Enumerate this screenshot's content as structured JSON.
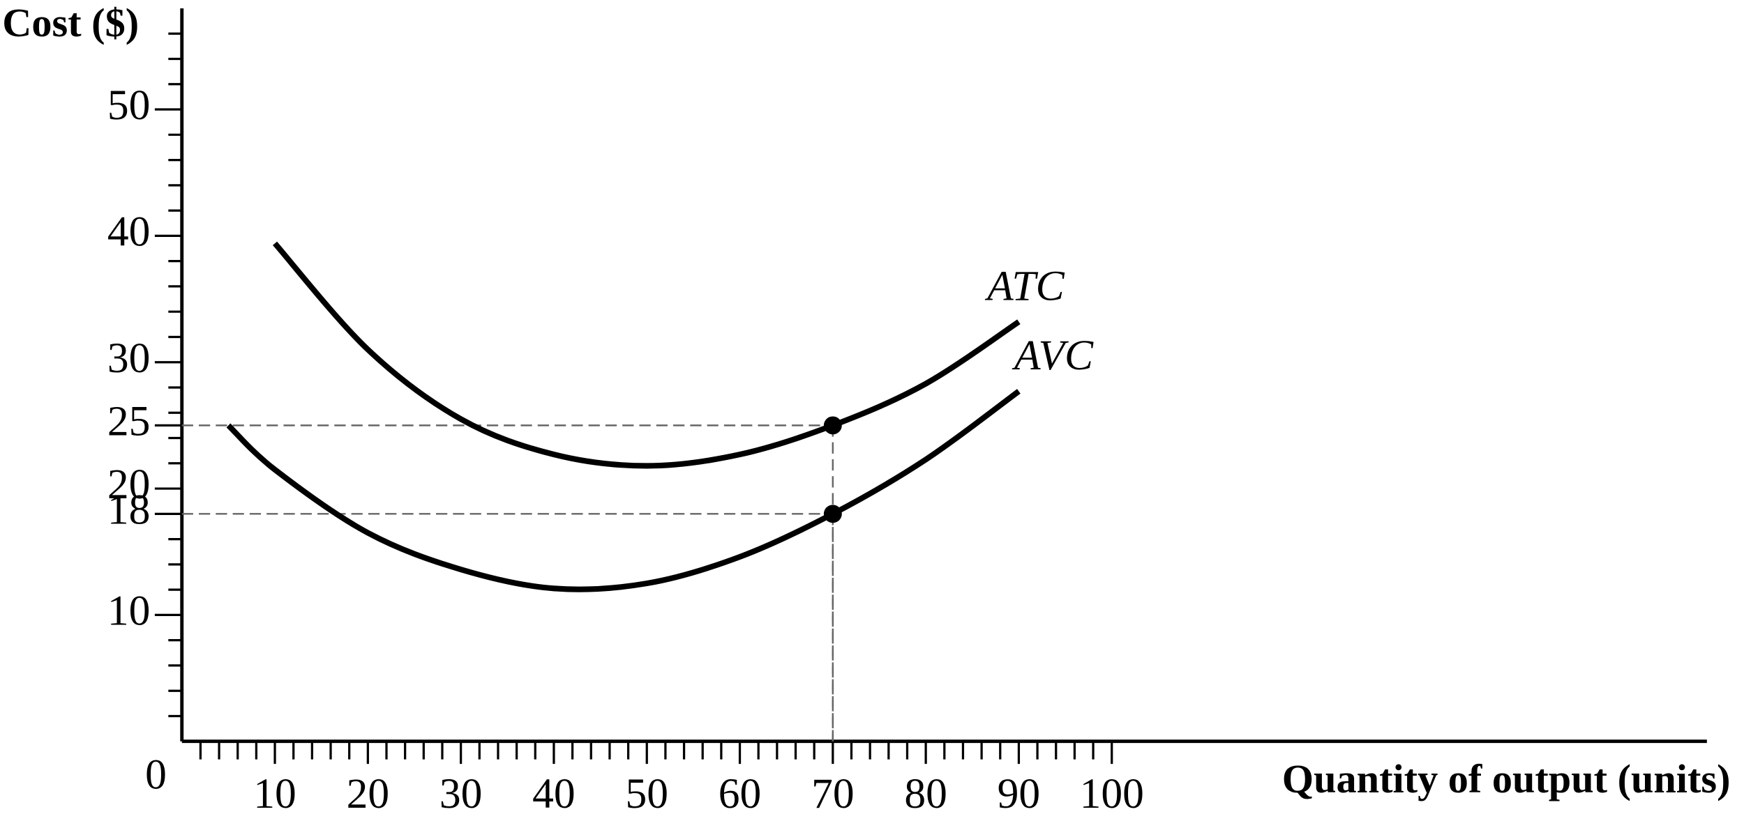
{
  "chart_data": {
    "type": "line",
    "ylabel": "Cost ($)",
    "xlabel": "Quantity of output (units)",
    "origin_label": "0",
    "x": [
      5,
      10,
      20,
      30,
      40,
      50,
      60,
      70,
      80,
      90
    ],
    "series": [
      {
        "name": "ATC",
        "color": "#000000",
        "values": [
          null,
          39.4,
          31,
          25.5,
          22.7,
          21.8,
          22.7,
          25,
          28.3,
          33.2
        ]
      },
      {
        "name": "AVC",
        "color": "#000000",
        "values": [
          25,
          21.5,
          16.5,
          13.6,
          12.1,
          12.5,
          14.6,
          18,
          22.3,
          27.7
        ]
      }
    ],
    "points": [
      {
        "x": 70,
        "y": 25
      },
      {
        "x": 70,
        "y": 18
      }
    ],
    "xlim": [
      0,
      164
    ],
    "ylim": [
      0,
      58
    ],
    "xticks": [
      10,
      20,
      30,
      40,
      50,
      60,
      70,
      80,
      90,
      100
    ],
    "yticks": [
      10,
      18,
      20,
      25,
      30,
      40,
      50
    ],
    "xminorticks": [
      2,
      4,
      6,
      8,
      12,
      14,
      16,
      18,
      22,
      24,
      26,
      28,
      32,
      34,
      36,
      38,
      42,
      44,
      46,
      48,
      52,
      54,
      56,
      58,
      62,
      64,
      66,
      68,
      72,
      74,
      76,
      78,
      82,
      84,
      86,
      88,
      92,
      94,
      96,
      98
    ],
    "yminorticks": [
      2,
      4,
      6,
      8,
      12,
      14,
      16,
      22,
      24,
      26,
      28,
      32,
      34,
      36,
      38,
      42,
      44,
      46,
      48,
      52,
      54,
      56
    ],
    "grid": false
  }
}
